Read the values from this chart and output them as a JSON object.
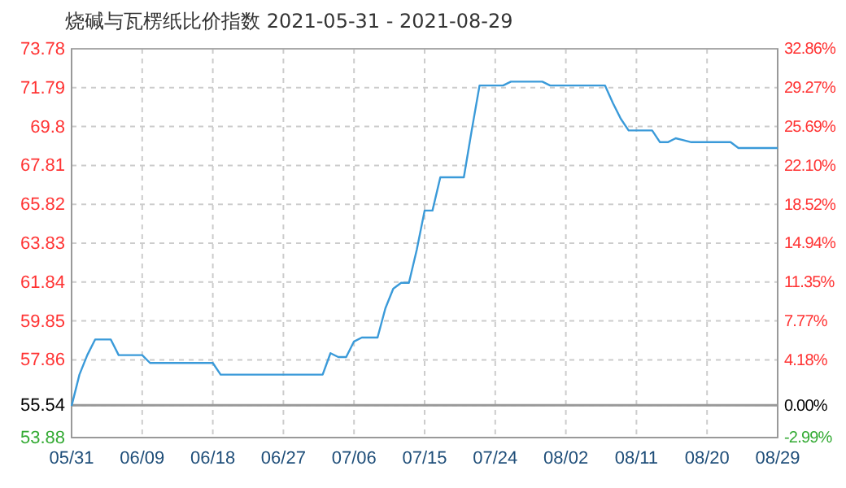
{
  "chart_data": {
    "type": "line",
    "title": "烧碱与瓦楞纸比价指数 2021-05-31 - 2021-08-29",
    "series": [
      {
        "color": "#3a9ad9",
        "x": [
          "2021-05-31",
          "2021-06-01",
          "2021-06-02",
          "2021-06-03",
          "2021-06-05",
          "2021-06-06",
          "2021-06-09",
          "2021-06-10",
          "2021-06-18",
          "2021-06-19",
          "2021-07-02",
          "2021-07-03",
          "2021-07-04",
          "2021-07-05",
          "2021-07-06",
          "2021-07-07",
          "2021-07-09",
          "2021-07-10",
          "2021-07-11",
          "2021-07-12",
          "2021-07-13",
          "2021-07-14",
          "2021-07-15",
          "2021-07-16",
          "2021-07-17",
          "2021-07-20",
          "2021-07-21",
          "2021-07-22",
          "2021-07-25",
          "2021-07-26",
          "2021-07-30",
          "2021-07-31",
          "2021-08-07",
          "2021-08-08",
          "2021-08-09",
          "2021-08-10",
          "2021-08-13",
          "2021-08-14",
          "2021-08-15",
          "2021-08-16",
          "2021-08-17",
          "2021-08-18",
          "2021-08-23",
          "2021-08-24",
          "2021-08-29"
        ],
        "values": [
          55.5,
          57.1,
          58.1,
          58.9,
          58.9,
          58.1,
          58.1,
          57.7,
          57.7,
          57.1,
          57.1,
          58.2,
          58.0,
          58.0,
          58.8,
          59.0,
          59.0,
          60.5,
          61.5,
          61.8,
          61.8,
          63.5,
          65.5,
          65.5,
          67.2,
          67.2,
          69.6,
          71.9,
          71.9,
          72.1,
          72.1,
          71.9,
          71.9,
          71.0,
          70.2,
          69.6,
          69.6,
          69.0,
          69.0,
          69.2,
          69.1,
          69.0,
          69.0,
          68.7,
          68.7
        ]
      }
    ],
    "xlim": [
      "2021-05-31",
      "2021-08-29"
    ],
    "xticks": [
      {
        "value": "2021-05-31",
        "label": "05/31"
      },
      {
        "value": "2021-06-09",
        "label": "06/09"
      },
      {
        "value": "2021-06-18",
        "label": "06/18"
      },
      {
        "value": "2021-06-27",
        "label": "06/27"
      },
      {
        "value": "2021-07-06",
        "label": "07/06"
      },
      {
        "value": "2021-07-15",
        "label": "07/15"
      },
      {
        "value": "2021-07-24",
        "label": "07/24"
      },
      {
        "value": "2021-08-02",
        "label": "08/02"
      },
      {
        "value": "2021-08-11",
        "label": "08/11"
      },
      {
        "value": "2021-08-20",
        "label": "08/20"
      },
      {
        "value": "2021-08-29",
        "label": "08/29"
      }
    ],
    "ylim": [
      53.88,
      73.78
    ],
    "yticks": [
      53.88,
      55.54,
      57.86,
      59.85,
      61.84,
      63.83,
      65.82,
      67.81,
      69.8,
      71.79,
      73.78
    ],
    "y2lim": [
      -2.99,
      32.86
    ],
    "y2ticks": [
      {
        "value": -2.99,
        "label": "-2.99%"
      },
      {
        "value": 0,
        "label": "0.00%"
      },
      {
        "value": 4.18,
        "label": "4.18%"
      },
      {
        "value": 7.77,
        "label": "7.77%"
      },
      {
        "value": 11.35,
        "label": "11.35%"
      },
      {
        "value": 14.94,
        "label": "14.94%"
      },
      {
        "value": 18.52,
        "label": "18.52%"
      },
      {
        "value": 22.1,
        "label": "22.10%"
      },
      {
        "value": 25.69,
        "label": "25.69%"
      },
      {
        "value": 29.27,
        "label": "29.27%"
      },
      {
        "value": 32.86,
        "label": "32.86%"
      }
    ],
    "ref_lines": [
      {
        "axis": "y",
        "value": 55.54,
        "color": "#999999"
      }
    ],
    "grid": true
  }
}
